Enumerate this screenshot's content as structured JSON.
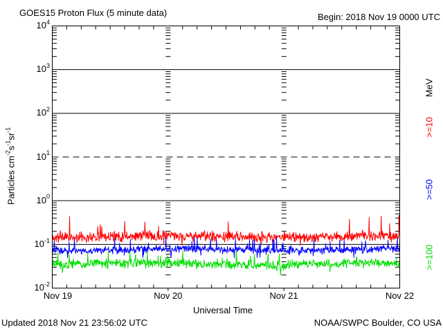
{
  "header": {
    "title": "GOES15 Proton Flux (5 minute data)",
    "begin_label": "Begin: 2018 Nov 19 0000 UTC"
  },
  "footer": {
    "updated": "Updated 2018 Nov 21 23:56:02 UTC",
    "source": "NOAA/SWPC Boulder, CO USA"
  },
  "chart_data": {
    "type": "line",
    "title": "GOES15 Proton Flux (5 minute data)",
    "xlabel": "Universal Time",
    "ylabel_plain": "Particles cm^-2 s^-1 sr^-1",
    "ylabel_parts": [
      {
        "t": "Particles cm",
        "sup": false
      },
      {
        "t": "-2",
        "sup": true
      },
      {
        "t": "s",
        "sup": false
      },
      {
        "t": "-1",
        "sup": true
      },
      {
        "t": "sr",
        "sup": false
      },
      {
        "t": "-1",
        "sup": true
      }
    ],
    "x_range": [
      "2018 Nov 19 0000 UTC",
      "2018 Nov 22 0000 UTC"
    ],
    "x_tick_labels": [
      "Nov 19",
      "Nov 20",
      "Nov 21",
      "Nov 22"
    ],
    "x_minor_tick_hours": 3,
    "days": 3,
    "interval_minutes": 5,
    "samples_per_series": 864,
    "y_scale": "log10",
    "y_limits": [
      0.01,
      10000
    ],
    "y_tick_exponents": [
      4,
      3,
      2,
      1,
      0,
      -1,
      -2
    ],
    "gridlines": {
      "solid_decade_exponents": [
        3,
        2,
        0,
        -1
      ],
      "dashed_decade_exponents": [
        1
      ],
      "day_boundary_minor_tick_columns": true
    },
    "legend": {
      "position": "right-outside-rotated",
      "unit": "MeV",
      "entries": [
        {
          "label": ">=10",
          "color": "#ff0000"
        },
        {
          "label": ">=50",
          "color": "#0000ff"
        },
        {
          "label": ">=100",
          "color": "#00dd00"
        }
      ]
    },
    "series": [
      {
        "name": "Proton flux >=10 MeV",
        "label": ">=10",
        "color": "#ff0000",
        "approx_median_flux": 0.17,
        "approx_flux_range": [
          0.09,
          0.5
        ],
        "gen": {
          "seed": 11,
          "base": -0.82,
          "jitter": 0.14,
          "spike_prob": 0.06,
          "spike_amp": 0.45,
          "clamp": [
            -1.03,
            -0.31
          ]
        }
      },
      {
        "name": "Proton flux >=50 MeV",
        "label": ">=50",
        "color": "#0000ff",
        "approx_median_flux": 0.075,
        "approx_flux_range": [
          0.05,
          0.15
        ],
        "gen": {
          "seed": 23,
          "base": -1.12,
          "jitter": 0.1,
          "spike_prob": 0.06,
          "spike_amp": 0.3,
          "clamp": [
            -1.31,
            -0.84
          ]
        }
      },
      {
        "name": "Proton flux >=100 MeV",
        "label": ">=100",
        "color": "#00dd00",
        "approx_median_flux": 0.037,
        "approx_flux_range": [
          0.02,
          0.07
        ],
        "gen": {
          "seed": 37,
          "base": -1.45,
          "jitter": 0.13,
          "spike_prob": 0.06,
          "spike_amp": 0.3,
          "clamp": [
            -1.74,
            -1.15
          ]
        }
      }
    ]
  }
}
